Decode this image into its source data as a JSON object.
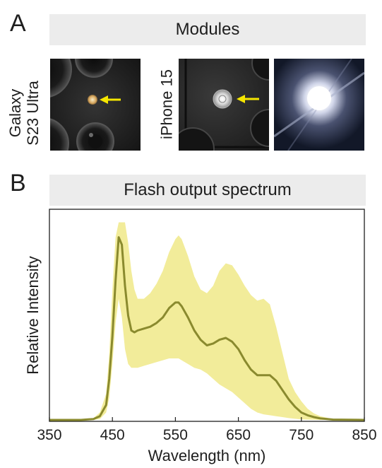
{
  "panel_a": {
    "letter": "A",
    "header": "Modules",
    "galaxy_label_line1": "Galaxy",
    "galaxy_label_line2": "S23 Ultra",
    "iphone_label": "iPhone 15"
  },
  "panel_b": {
    "letter": "B",
    "header": "Flash output spectrum"
  },
  "colors": {
    "mean_line": "#8a8a2e",
    "band_fill": "#f2ec9a",
    "arrow": "#f5e600",
    "header_bg": "#ececec"
  },
  "chart_data": {
    "type": "line",
    "title": "Flash output spectrum",
    "xlabel": "Wavelength (nm)",
    "ylabel": "Relative Intensity",
    "xlim": [
      350,
      850
    ],
    "ylim": [
      0,
      1.1
    ],
    "xticks": [
      350,
      450,
      550,
      650,
      750,
      850
    ],
    "grid": false,
    "x": [
      350,
      400,
      420,
      430,
      440,
      445,
      450,
      455,
      460,
      465,
      470,
      475,
      480,
      485,
      490,
      500,
      510,
      520,
      530,
      540,
      550,
      555,
      560,
      570,
      580,
      590,
      600,
      610,
      620,
      630,
      640,
      650,
      660,
      670,
      680,
      690,
      700,
      710,
      720,
      730,
      740,
      750,
      760,
      770,
      780,
      800,
      850
    ],
    "series": [
      {
        "values": [
          0,
          0,
          0.005,
          0.02,
          0.08,
          0.22,
          0.45,
          0.75,
          0.98,
          0.94,
          0.72,
          0.56,
          0.48,
          0.47,
          0.48,
          0.49,
          0.5,
          0.52,
          0.55,
          0.6,
          0.63,
          0.63,
          0.61,
          0.55,
          0.48,
          0.43,
          0.4,
          0.41,
          0.43,
          0.44,
          0.42,
          0.38,
          0.32,
          0.27,
          0.24,
          0.24,
          0.24,
          0.21,
          0.16,
          0.11,
          0.07,
          0.04,
          0.025,
          0.015,
          0.008,
          0.002,
          0
        ]
      },
      {
        "values": [
          0,
          0,
          0.01,
          0.04,
          0.14,
          0.35,
          0.7,
          0.98,
          1.06,
          1.06,
          1.06,
          0.95,
          0.8,
          0.7,
          0.65,
          0.65,
          0.68,
          0.73,
          0.8,
          0.9,
          0.97,
          0.99,
          0.97,
          0.88,
          0.77,
          0.7,
          0.68,
          0.72,
          0.8,
          0.84,
          0.83,
          0.78,
          0.72,
          0.67,
          0.64,
          0.65,
          0.62,
          0.5,
          0.36,
          0.22,
          0.15,
          0.1,
          0.06,
          0.035,
          0.02,
          0.005,
          0
        ]
      },
      {
        "values": [
          0,
          0,
          0,
          0.005,
          0.04,
          0.12,
          0.3,
          0.52,
          0.65,
          0.55,
          0.38,
          0.3,
          0.28,
          0.28,
          0.28,
          0.29,
          0.3,
          0.31,
          0.32,
          0.33,
          0.33,
          0.33,
          0.32,
          0.3,
          0.28,
          0.27,
          0.25,
          0.22,
          0.19,
          0.17,
          0.15,
          0.12,
          0.09,
          0.06,
          0.04,
          0.03,
          0.025,
          0.02,
          0.015,
          0.01,
          0.006,
          0.003,
          0.002,
          0.001,
          0,
          0,
          0
        ]
      }
    ]
  }
}
